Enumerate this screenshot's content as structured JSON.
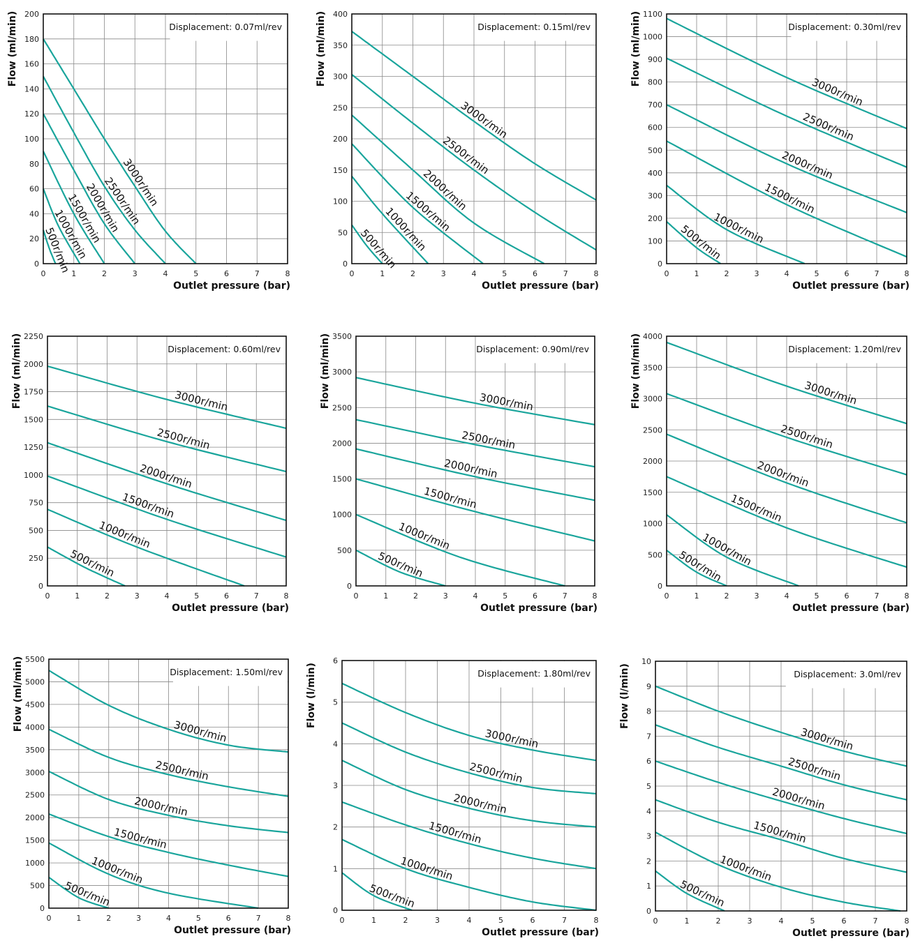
{
  "chart_data": [
    {
      "type": "line",
      "title": "Displacement:  0.07ml/rev",
      "xlabel": "Outlet pressure (bar)",
      "ylabel": "Flow (ml/min)",
      "xlim": [
        0,
        8
      ],
      "ylim": [
        0,
        200
      ],
      "ystep": 20,
      "grid": true,
      "line_color": "#1aa59c",
      "series": [
        {
          "name": "3000r/min",
          "x": [
            0,
            1,
            2,
            3,
            4,
            5
          ],
          "y": [
            180,
            140,
            100,
            62,
            26,
            0
          ]
        },
        {
          "name": "2500r/min",
          "x": [
            0,
            1,
            2,
            3,
            4
          ],
          "y": [
            150,
            105,
            62,
            27,
            0
          ]
        },
        {
          "name": "2000r/min",
          "x": [
            0,
            1,
            2,
            3
          ],
          "y": [
            120,
            75,
            32,
            0
          ]
        },
        {
          "name": "1500r/min",
          "x": [
            0,
            1,
            2
          ],
          "y": [
            90,
            40,
            0
          ]
        },
        {
          "name": "1000r/min",
          "x": [
            0,
            0.5,
            1.2
          ],
          "y": [
            60,
            30,
            0
          ]
        },
        {
          "name": "500r/min",
          "x": [
            0,
            0.2,
            0.4
          ],
          "y": [
            27,
            12,
            0
          ]
        }
      ]
    },
    {
      "type": "line",
      "title": "Displacement:  0.15ml/rev",
      "xlabel": "Outlet pressure (bar)",
      "ylabel": "Flow (ml/min)",
      "xlim": [
        0,
        8
      ],
      "ylim": [
        0,
        400
      ],
      "ystep": 50,
      "grid": true,
      "line_color": "#1aa59c",
      "series": [
        {
          "name": "3000r/min",
          "x": [
            0,
            2,
            4,
            6,
            8
          ],
          "y": [
            372,
            300,
            228,
            160,
            102
          ]
        },
        {
          "name": "2500r/min",
          "x": [
            0,
            2,
            4,
            6,
            8
          ],
          "y": [
            303,
            225,
            150,
            82,
            22
          ]
        },
        {
          "name": "2000r/min",
          "x": [
            0,
            2,
            4,
            6.3
          ],
          "y": [
            238,
            150,
            65,
            0
          ]
        },
        {
          "name": "1500r/min",
          "x": [
            0,
            2,
            4.3
          ],
          "y": [
            192,
            90,
            0
          ]
        },
        {
          "name": "1000r/min",
          "x": [
            0,
            1,
            2.5
          ],
          "y": [
            140,
            80,
            0
          ]
        },
        {
          "name": "500r/min",
          "x": [
            0,
            0.5,
            1
          ],
          "y": [
            62,
            28,
            0
          ]
        }
      ]
    },
    {
      "type": "line",
      "title": "Displacement:  0.30ml/rev",
      "xlabel": "Outlet pressure (bar)",
      "ylabel": "Flow (ml/min)",
      "xlim": [
        0,
        8
      ],
      "ylim": [
        0,
        1100
      ],
      "ystep": 100,
      "grid": true,
      "line_color": "#1aa59c",
      "series": [
        {
          "name": "3000r/min",
          "x": [
            0,
            4,
            8
          ],
          "y": [
            1080,
            820,
            595
          ]
        },
        {
          "name": "2500r/min",
          "x": [
            0,
            4,
            8
          ],
          "y": [
            905,
            650,
            425
          ]
        },
        {
          "name": "2000r/min",
          "x": [
            0,
            4,
            8
          ],
          "y": [
            700,
            440,
            225
          ]
        },
        {
          "name": "1500r/min",
          "x": [
            0,
            4,
            8
          ],
          "y": [
            540,
            260,
            30
          ]
        },
        {
          "name": "1000r/min",
          "x": [
            0,
            2,
            4.6
          ],
          "y": [
            345,
            150,
            0
          ]
        },
        {
          "name": "500r/min",
          "x": [
            0,
            1,
            1.8
          ],
          "y": [
            185,
            70,
            0
          ]
        }
      ]
    },
    {
      "type": "line",
      "title": "Displacement:  0.60ml/rev",
      "xlabel": "Outlet pressure (bar)",
      "ylabel": "Flow (ml/min)",
      "xlim": [
        0,
        8
      ],
      "ylim": [
        0,
        2250
      ],
      "ystep": 250,
      "grid": true,
      "line_color": "#1aa59c",
      "series": [
        {
          "name": "3000r/min",
          "x": [
            0,
            4,
            8
          ],
          "y": [
            1980,
            1680,
            1420
          ]
        },
        {
          "name": "2500r/min",
          "x": [
            0,
            4,
            8
          ],
          "y": [
            1620,
            1300,
            1030
          ]
        },
        {
          "name": "2000r/min",
          "x": [
            0,
            4,
            8
          ],
          "y": [
            1290,
            920,
            590
          ]
        },
        {
          "name": "1500r/min",
          "x": [
            0,
            4,
            8
          ],
          "y": [
            990,
            600,
            260
          ]
        },
        {
          "name": "1000r/min",
          "x": [
            0,
            3,
            6.6
          ],
          "y": [
            690,
            350,
            0
          ]
        },
        {
          "name": "500r/min",
          "x": [
            0,
            1.3,
            2.6
          ],
          "y": [
            350,
            160,
            0
          ]
        }
      ]
    },
    {
      "type": "line",
      "title": "Displacement:  0.90ml/rev",
      "xlabel": "Outlet pressure (bar)",
      "ylabel": "Flow (ml/min)",
      "xlim": [
        0,
        8
      ],
      "ylim": [
        0,
        3500
      ],
      "ystep": 500,
      "grid": true,
      "line_color": "#1aa59c",
      "series": [
        {
          "name": "3000r/min",
          "x": [
            0,
            4,
            8
          ],
          "y": [
            2920,
            2560,
            2260
          ]
        },
        {
          "name": "2500r/min",
          "x": [
            0,
            4,
            8
          ],
          "y": [
            2330,
            1980,
            1670
          ]
        },
        {
          "name": "2000r/min",
          "x": [
            0,
            4,
            8
          ],
          "y": [
            1920,
            1530,
            1200
          ]
        },
        {
          "name": "1500r/min",
          "x": [
            0,
            4,
            8
          ],
          "y": [
            1500,
            1040,
            630
          ]
        },
        {
          "name": "1000r/min",
          "x": [
            0,
            3.5,
            7
          ],
          "y": [
            1000,
            400,
            0
          ]
        },
        {
          "name": "500r/min",
          "x": [
            0,
            1.5,
            3
          ],
          "y": [
            500,
            190,
            0
          ]
        }
      ]
    },
    {
      "type": "line",
      "title": "Displacement:  1.20ml/rev",
      "xlabel": "Outlet pressure (bar)",
      "ylabel": "Flow (ml/min)",
      "xlim": [
        0,
        8
      ],
      "ylim": [
        0,
        4000
      ],
      "ystep": 500,
      "grid": true,
      "line_color": "#1aa59c",
      "series": [
        {
          "name": "3000r/min",
          "x": [
            0,
            4,
            8
          ],
          "y": [
            3900,
            3200,
            2600
          ]
        },
        {
          "name": "2500r/min",
          "x": [
            0,
            4,
            8
          ],
          "y": [
            3080,
            2380,
            1780
          ]
        },
        {
          "name": "2000r/min",
          "x": [
            0,
            4,
            8
          ],
          "y": [
            2430,
            1650,
            1010
          ]
        },
        {
          "name": "1500r/min",
          "x": [
            0,
            4,
            8
          ],
          "y": [
            1750,
            930,
            300
          ]
        },
        {
          "name": "1000r/min",
          "x": [
            0,
            2,
            4.4
          ],
          "y": [
            1140,
            460,
            0
          ]
        },
        {
          "name": "500r/min",
          "x": [
            0,
            1,
            2
          ],
          "y": [
            570,
            220,
            0
          ]
        }
      ]
    },
    {
      "type": "line",
      "title": "Displacement:  1.50ml/rev",
      "xlabel": "Outlet pressure (bar)",
      "ylabel": "Flow (ml/min)",
      "xlim": [
        0,
        8
      ],
      "ylim": [
        0,
        5500
      ],
      "ystep": 500,
      "grid": true,
      "line_color": "#1aa59c",
      "series": [
        {
          "name": "3000r/min",
          "x": [
            0,
            2,
            4,
            6,
            8
          ],
          "y": [
            5250,
            4480,
            3950,
            3600,
            3450
          ]
        },
        {
          "name": "2500r/min",
          "x": [
            0,
            2,
            4,
            6,
            8
          ],
          "y": [
            3950,
            3330,
            2950,
            2680,
            2470
          ]
        },
        {
          "name": "2000r/min",
          "x": [
            0,
            2,
            4,
            6,
            8
          ],
          "y": [
            3020,
            2400,
            2050,
            1820,
            1670
          ]
        },
        {
          "name": "1500r/min",
          "x": [
            0,
            2,
            4,
            6,
            8
          ],
          "y": [
            2080,
            1580,
            1230,
            950,
            700
          ]
        },
        {
          "name": "1000r/min",
          "x": [
            0,
            2,
            4,
            7
          ],
          "y": [
            1440,
            750,
            330,
            0
          ]
        },
        {
          "name": "500r/min",
          "x": [
            0,
            1,
            2
          ],
          "y": [
            680,
            230,
            0
          ]
        }
      ]
    },
    {
      "type": "line",
      "title": "Displacement:  1.80ml/rev",
      "xlabel": "Outlet pressure (bar)",
      "ylabel": "Flow (l/min)",
      "xlim": [
        0,
        8
      ],
      "ylim": [
        0,
        6
      ],
      "ystep": 1,
      "grid": true,
      "line_color": "#1aa59c",
      "series": [
        {
          "name": "3000r/min",
          "x": [
            0,
            2,
            4,
            6,
            8
          ],
          "y": [
            5.45,
            4.75,
            4.2,
            3.85,
            3.6
          ]
        },
        {
          "name": "2500r/min",
          "x": [
            0,
            2,
            4,
            6,
            8
          ],
          "y": [
            4.5,
            3.8,
            3.3,
            2.95,
            2.8
          ]
        },
        {
          "name": "2000r/min",
          "x": [
            0,
            2,
            4,
            6,
            8
          ],
          "y": [
            3.6,
            2.9,
            2.45,
            2.15,
            2.0
          ]
        },
        {
          "name": "1500r/min",
          "x": [
            0,
            2,
            4,
            6,
            8
          ],
          "y": [
            2.6,
            2.05,
            1.6,
            1.25,
            1.0
          ]
        },
        {
          "name": "1000r/min",
          "x": [
            0,
            2,
            4,
            6,
            8
          ],
          "y": [
            1.7,
            1.0,
            0.55,
            0.2,
            0
          ]
        },
        {
          "name": "500r/min",
          "x": [
            0,
            1,
            2.2
          ],
          "y": [
            0.9,
            0.35,
            0
          ]
        }
      ]
    },
    {
      "type": "line",
      "title": "Displacement:  3.0ml/rev",
      "xlabel": "Outlet pressure (bar)",
      "ylabel": "Flow (l/min)",
      "xlim": [
        0,
        8
      ],
      "ylim": [
        0,
        10
      ],
      "ystep": 1,
      "grid": true,
      "line_color": "#1aa59c",
      "series": [
        {
          "name": "3000r/min",
          "x": [
            0,
            2,
            4,
            6,
            8
          ],
          "y": [
            9,
            8,
            7.15,
            6.4,
            5.8
          ]
        },
        {
          "name": "2500r/min",
          "x": [
            0,
            2,
            4,
            6,
            8
          ],
          "y": [
            7.45,
            6.55,
            5.8,
            5.05,
            4.45
          ]
        },
        {
          "name": "2000r/min",
          "x": [
            0,
            2,
            4,
            6,
            8
          ],
          "y": [
            6,
            5.15,
            4.4,
            3.7,
            3.1
          ]
        },
        {
          "name": "1500r/min",
          "x": [
            0,
            2,
            4,
            6,
            8
          ],
          "y": [
            4.45,
            3.55,
            2.85,
            2.1,
            1.55
          ]
        },
        {
          "name": "1000r/min",
          "x": [
            0,
            2,
            4,
            6,
            7.8
          ],
          "y": [
            3.15,
            1.85,
            0.95,
            0.35,
            0
          ]
        },
        {
          "name": "500r/min",
          "x": [
            0,
            1,
            2.2
          ],
          "y": [
            1.6,
            0.7,
            0
          ]
        }
      ]
    }
  ]
}
